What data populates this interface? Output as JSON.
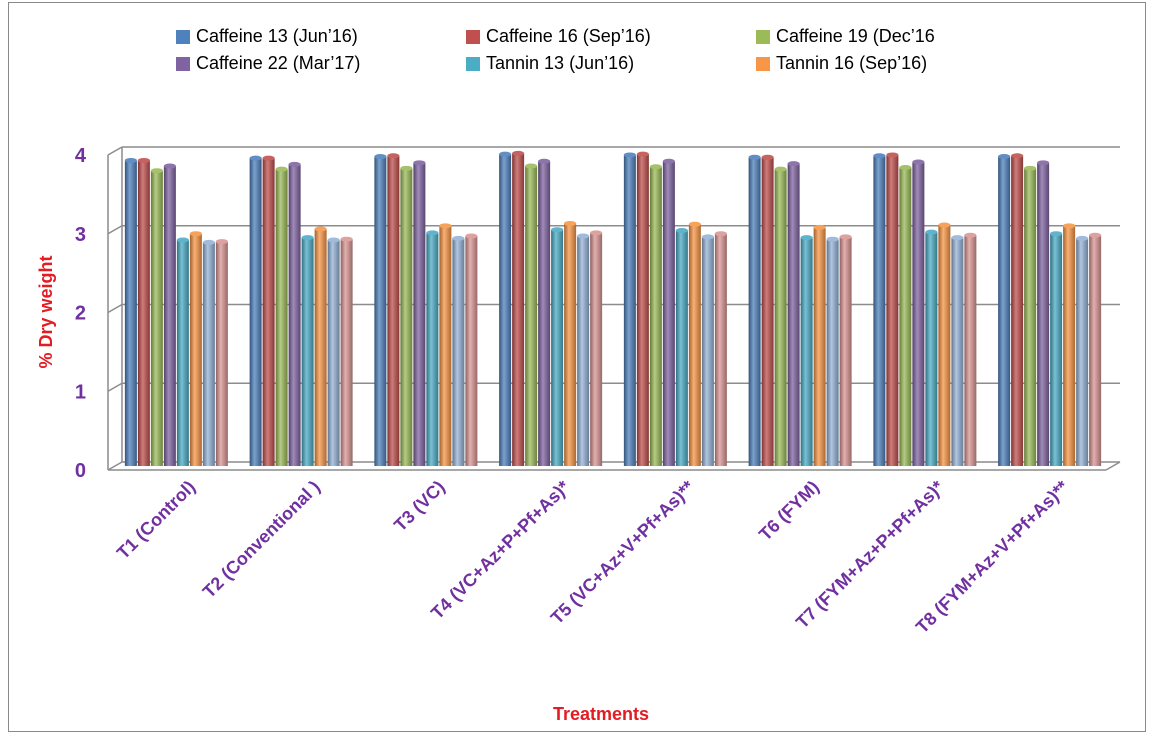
{
  "chart_data": {
    "type": "bar",
    "title": "",
    "xlabel": "Treatments",
    "ylabel": "% Dry weight",
    "ylim": [
      0,
      4
    ],
    "yticks": [
      0,
      1,
      2,
      3,
      4
    ],
    "grid": true,
    "legend_position": "top",
    "categories": [
      "T1 (Control)",
      "T2 (Conventional )",
      "T3 (VC)",
      "T4 (VC+Az+P+Pf+As)*",
      "T5 (VC+Az+V+Pf+As)**",
      "T6 (FYM)",
      "T7 (FYM+Az+P+Pf+As)*",
      "T8 (FYM+Az+V+Pf+As)**"
    ],
    "series": [
      {
        "name": "Caffeine 13 (Jun’16)",
        "color": "#4f81bd",
        "values": [
          3.88,
          3.91,
          3.93,
          3.96,
          3.95,
          3.92,
          3.94,
          3.93
        ]
      },
      {
        "name": "Caffeine 16 (Sep’16)",
        "color": "#c0504d",
        "values": [
          3.88,
          3.91,
          3.94,
          3.97,
          3.96,
          3.92,
          3.95,
          3.94
        ]
      },
      {
        "name": "Caffeine 19 (Dec’16",
        "color": "#9bbb59",
        "values": [
          3.75,
          3.77,
          3.78,
          3.81,
          3.8,
          3.77,
          3.79,
          3.78
        ]
      },
      {
        "name": "Caffeine 22 (Mar’17)",
        "color": "#8064a2",
        "values": [
          3.81,
          3.83,
          3.85,
          3.87,
          3.87,
          3.84,
          3.86,
          3.85
        ]
      },
      {
        "name": "Tannin 13 (Jun’16)",
        "color": "#4bacc6",
        "values": [
          2.87,
          2.9,
          2.96,
          3.0,
          2.99,
          2.9,
          2.97,
          2.95
        ]
      },
      {
        "name": "Tannin 16 (Sep’16)",
        "color": "#f79646",
        "values": [
          2.95,
          3.01,
          3.05,
          3.08,
          3.07,
          3.03,
          3.06,
          3.05
        ]
      },
      {
        "name": "",
        "color": "#95b3d7",
        "values": [
          2.84,
          2.87,
          2.89,
          2.92,
          2.91,
          2.88,
          2.9,
          2.89
        ]
      },
      {
        "name": "",
        "color": "#d99694",
        "values": [
          2.85,
          2.88,
          2.92,
          2.96,
          2.95,
          2.91,
          2.93,
          2.93
        ]
      }
    ]
  }
}
